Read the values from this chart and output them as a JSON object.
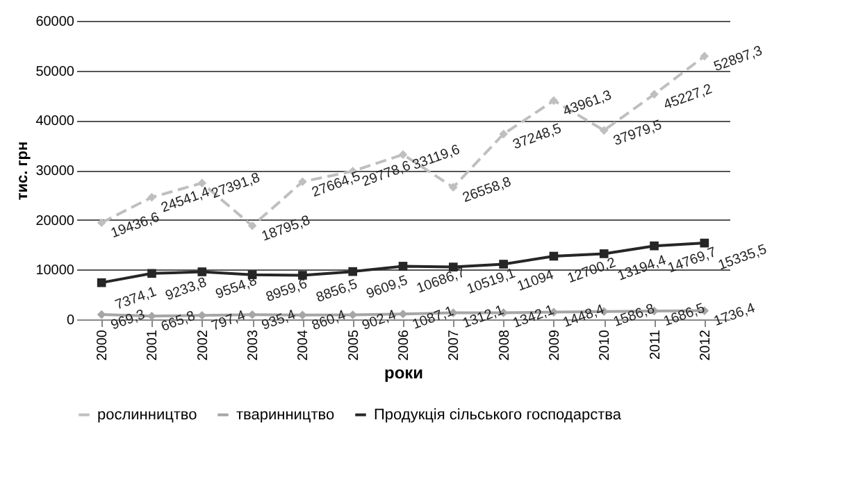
{
  "chart_data": {
    "type": "line",
    "xlabel": "роки",
    "ylabel": "тис. грн",
    "categories": [
      "2000",
      "2001",
      "2002",
      "2003",
      "2004",
      "2005",
      "2006",
      "2007",
      "2008",
      "2009",
      "2010",
      "2011",
      "2012"
    ],
    "series": [
      {
        "name": "рослинництво",
        "color": "#bfbfbf",
        "marker": "diamond",
        "line_style": "dashed",
        "values": [
          19436.6,
          24541.4,
          27391.8,
          18795.8,
          27664.5,
          29778.6,
          33119.6,
          26558.8,
          37248.5,
          43961.3,
          37979.5,
          45227.2,
          52897.3
        ],
        "value_labels": [
          "19436,6",
          "24541,4",
          "27391,8",
          "18795,8",
          "27664,5",
          "29778,6",
          "33119,6",
          "26558,8",
          "37248,5",
          "43961,3",
          "37979,5",
          "45227,2",
          "52897,3"
        ]
      },
      {
        "name": "тваринництво",
        "color": "#a6a6a6",
        "marker": "diamond",
        "line_style": "solid",
        "values": [
          969.3,
          665.8,
          797.4,
          935.4,
          860.4,
          902.4,
          1087.1,
          1312.1,
          1342.1,
          1448.4,
          1586.8,
          1686.5,
          1736.4
        ],
        "value_labels": [
          "969,3",
          "665,8",
          "797,4",
          "935,4",
          "860,4",
          "902,4",
          "1087,1",
          "1312,1",
          "1342,1",
          "1448,4",
          "1586,8",
          "1686,5",
          "1736,4"
        ]
      },
      {
        "name": "Продукція сільського господарства",
        "color": "#262626",
        "marker": "square",
        "line_style": "solid",
        "values": [
          7374.1,
          9233.8,
          9554.8,
          8959.6,
          8856.5,
          9609.5,
          10686.7,
          10519.1,
          11094,
          12700.2,
          13194.4,
          14769.7,
          15335.5
        ],
        "value_labels": [
          "7374,1",
          "9233,8",
          "9554,8",
          "8959,6",
          "8856,5",
          "9609,5",
          "10686,7",
          "10519,1",
          "11094",
          "12700,2",
          "13194,4",
          "14769,7",
          "15335,5"
        ]
      }
    ],
    "ylim": [
      0,
      60000
    ],
    "yticks": [
      0,
      10000,
      20000,
      30000,
      40000,
      50000,
      60000
    ],
    "grid": "y",
    "legend": "bottom"
  }
}
